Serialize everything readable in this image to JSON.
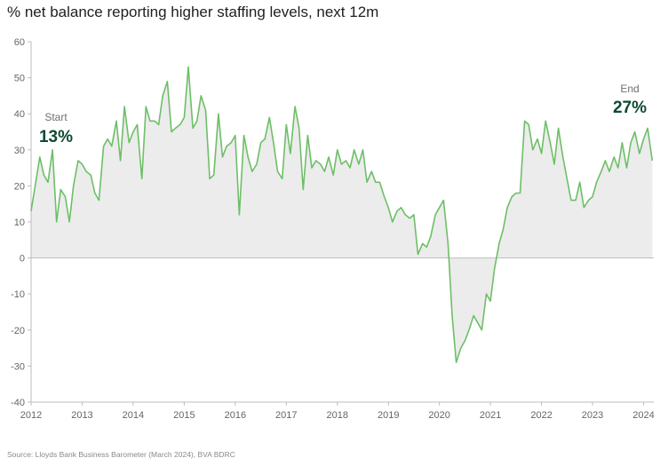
{
  "chart_data": {
    "type": "area",
    "title": "% net balance reporting higher staffing levels, next 12m",
    "source": "Source: Lloyds Bank Business Barometer (March 2024), BVA BDRC",
    "xlim": [
      2012.0,
      2024.2
    ],
    "ylim": [
      -40,
      60
    ],
    "yticks": [
      60,
      50,
      40,
      30,
      20,
      10,
      0,
      -10,
      -20,
      -30,
      -40
    ],
    "xticks": [
      "2012",
      "2013",
      "2014",
      "2015",
      "2016",
      "2017",
      "2018",
      "2019",
      "2020",
      "2021",
      "2022",
      "2023",
      "2024"
    ],
    "grid": false,
    "colors": {
      "line": "#6dbf67",
      "fill": "#ececec",
      "axis": "#bdbdbd"
    },
    "annotations": [
      {
        "label": "Start",
        "value": "13%",
        "position": "left"
      },
      {
        "label": "End",
        "value": "27%",
        "position": "right"
      }
    ],
    "series": [
      {
        "x": [
          2012.0,
          2012.08,
          2012.17,
          2012.25,
          2012.33,
          2012.42,
          2012.5,
          2012.58,
          2012.67,
          2012.75,
          2012.83,
          2012.92,
          2013.0,
          2013.08,
          2013.17,
          2013.25,
          2013.33,
          2013.42,
          2013.5,
          2013.58,
          2013.67,
          2013.75,
          2013.83,
          2013.92,
          2014.0,
          2014.08,
          2014.17,
          2014.25,
          2014.33,
          2014.42,
          2014.5,
          2014.58,
          2014.67,
          2014.75,
          2014.83,
          2014.92,
          2015.0,
          2015.08,
          2015.17,
          2015.25,
          2015.33,
          2015.42,
          2015.5,
          2015.58,
          2015.67,
          2015.75,
          2015.83,
          2015.92,
          2016.0,
          2016.08,
          2016.17,
          2016.25,
          2016.33,
          2016.42,
          2016.5,
          2016.58,
          2016.67,
          2016.75,
          2016.83,
          2016.92,
          2017.0,
          2017.08,
          2017.17,
          2017.25,
          2017.33,
          2017.42,
          2017.5,
          2017.58,
          2017.67,
          2017.75,
          2017.83,
          2017.92,
          2018.0,
          2018.08,
          2018.17,
          2018.25,
          2018.33,
          2018.42,
          2018.5,
          2018.58,
          2018.67,
          2018.75,
          2018.83,
          2018.92,
          2019.0,
          2019.08,
          2019.17,
          2019.25,
          2019.33,
          2019.42,
          2019.5,
          2019.58,
          2019.67,
          2019.75,
          2019.83,
          2019.92,
          2020.0,
          2020.08,
          2020.17,
          2020.25,
          2020.33,
          2020.42,
          2020.5,
          2020.58,
          2020.67,
          2020.75,
          2020.83,
          2020.92,
          2021.0,
          2021.08,
          2021.17,
          2021.25,
          2021.33,
          2021.42,
          2021.5,
          2021.58,
          2021.67,
          2021.75,
          2021.83,
          2021.92,
          2022.0,
          2022.08,
          2022.17,
          2022.25,
          2022.33,
          2022.42,
          2022.5,
          2022.58,
          2022.67,
          2022.75,
          2022.83,
          2022.92,
          2023.0,
          2023.08,
          2023.17,
          2023.25,
          2023.33,
          2023.42,
          2023.5,
          2023.58,
          2023.67,
          2023.75,
          2023.83,
          2023.92,
          2024.0,
          2024.08,
          2024.17
        ],
        "y": [
          13,
          20,
          28,
          23,
          21,
          30,
          10,
          19,
          17,
          10,
          20,
          27,
          26,
          24,
          23,
          18,
          16,
          31,
          33,
          31,
          38,
          27,
          42,
          32,
          35,
          37,
          22,
          42,
          38,
          38,
          37,
          45,
          49,
          35,
          36,
          37,
          39,
          53,
          36,
          38,
          45,
          41,
          22,
          23,
          40,
          28,
          31,
          32,
          34,
          12,
          34,
          28,
          24,
          26,
          32,
          33,
          39,
          32,
          24,
          22,
          37,
          29,
          42,
          36,
          19,
          34,
          25,
          27,
          26,
          24,
          28,
          23,
          30,
          26,
          27,
          25,
          30,
          26,
          30,
          21,
          24,
          21,
          21,
          17,
          14,
          10,
          13,
          14,
          12,
          11,
          12,
          1,
          4,
          3,
          6,
          12,
          14,
          16,
          4,
          -16,
          -29,
          -25,
          -23,
          -20,
          -16,
          -18,
          -20,
          -10,
          -12,
          -3,
          4,
          8,
          14,
          17,
          18,
          18,
          38,
          37,
          30,
          33,
          29,
          38,
          32,
          26,
          36,
          28,
          22,
          16,
          16,
          21,
          14,
          16,
          17,
          21,
          24,
          27,
          24,
          28,
          25,
          32,
          25,
          32,
          35,
          29,
          33,
          36,
          27
        ]
      }
    ]
  }
}
